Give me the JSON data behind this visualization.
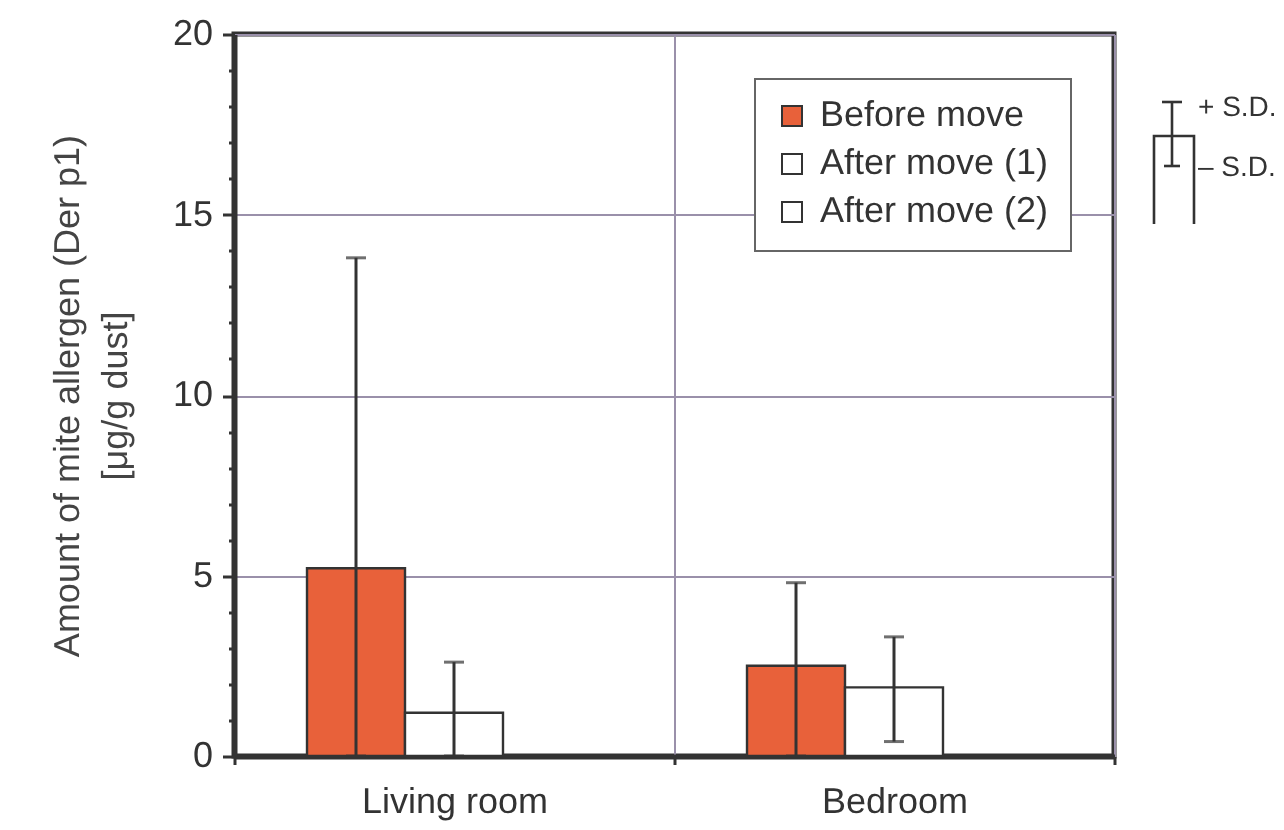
{
  "chart_data": {
    "type": "bar",
    "ylabel": "Amount of mite allergen (Der p1)\n[μg/g dust]",
    "categories": [
      "Living room",
      "Bedroom"
    ],
    "series": [
      {
        "name": "Before move",
        "color": "#e8613a",
        "values": [
          5.2,
          2.5
        ],
        "errors": [
          [
            0,
            13.8
          ],
          [
            0,
            4.8
          ]
        ]
      },
      {
        "name": "After move (1)",
        "color": "#ffffff",
        "values": [
          1.2,
          1.9
        ],
        "errors": [
          [
            0,
            2.6
          ],
          [
            0.4,
            3.3
          ]
        ]
      },
      {
        "name": "After move (2)",
        "color": "#ffffff",
        "values": [
          null,
          null
        ]
      }
    ],
    "ylim": [
      0,
      20
    ],
    "yticks": [
      0,
      {
        "value": 1,
        "label": null
      },
      {
        "value": 2,
        "label": null
      },
      {
        "value": 3,
        "label": null
      },
      {
        "value": 4,
        "label": null
      },
      5,
      {
        "value": 6,
        "label": null
      },
      {
        "value": 7,
        "label": null
      },
      {
        "value": 8,
        "label": null
      },
      {
        "value": 9,
        "label": null
      },
      10,
      {
        "value": 11,
        "label": null
      },
      {
        "value": 12,
        "label": null
      },
      {
        "value": 13,
        "label": null
      },
      {
        "value": 14,
        "label": null
      },
      15,
      {
        "value": 16,
        "label": null
      },
      {
        "value": 17,
        "label": null
      },
      {
        "value": 18,
        "label": null
      },
      {
        "value": 19,
        "label": null
      },
      20
    ],
    "grid": true,
    "legend": "top right",
    "annotations": [
      "+ S.D.",
      "– S.D."
    ]
  }
}
